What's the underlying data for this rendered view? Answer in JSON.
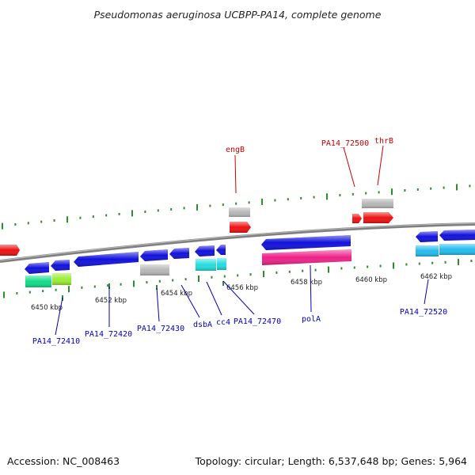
{
  "title": "Pseudomonas aeruginosa UCBPP-PA14, complete genome",
  "accession": "Accession: NC_008463",
  "topology": "Topology: circular; Length: 6,537,648 bp; Genes: 5,964",
  "colors": {
    "backbone": "#8a8a8a",
    "tick": "#2e8b2e",
    "forward_label": "#cc0000",
    "reverse_label": "#0000bb",
    "red_gene": "#ee1111",
    "blue_gene": "#1111dd",
    "gray_gene": "#b8b8b8",
    "magenta_gene": "#ee2288",
    "cyan_gene": "#22dddd",
    "lightblue_gene": "#22bbee",
    "green_gene": "#11dd88",
    "lime_gene": "#99ee33"
  },
  "kbp_labels": [
    "6450 kbp",
    "6452 kbp",
    "6454 kbp",
    "6456 kbp",
    "6458 kbp",
    "6460 kbp",
    "6462 kbp"
  ],
  "forward_labels": [
    "engB",
    "PA14_72500",
    "thrB"
  ],
  "reverse_labels": [
    "PA14_72410",
    "PA14_72420",
    "PA14_72430",
    "dsbA",
    "cc4",
    "PA14_72470",
    "polA",
    "PA14_72520"
  ]
}
